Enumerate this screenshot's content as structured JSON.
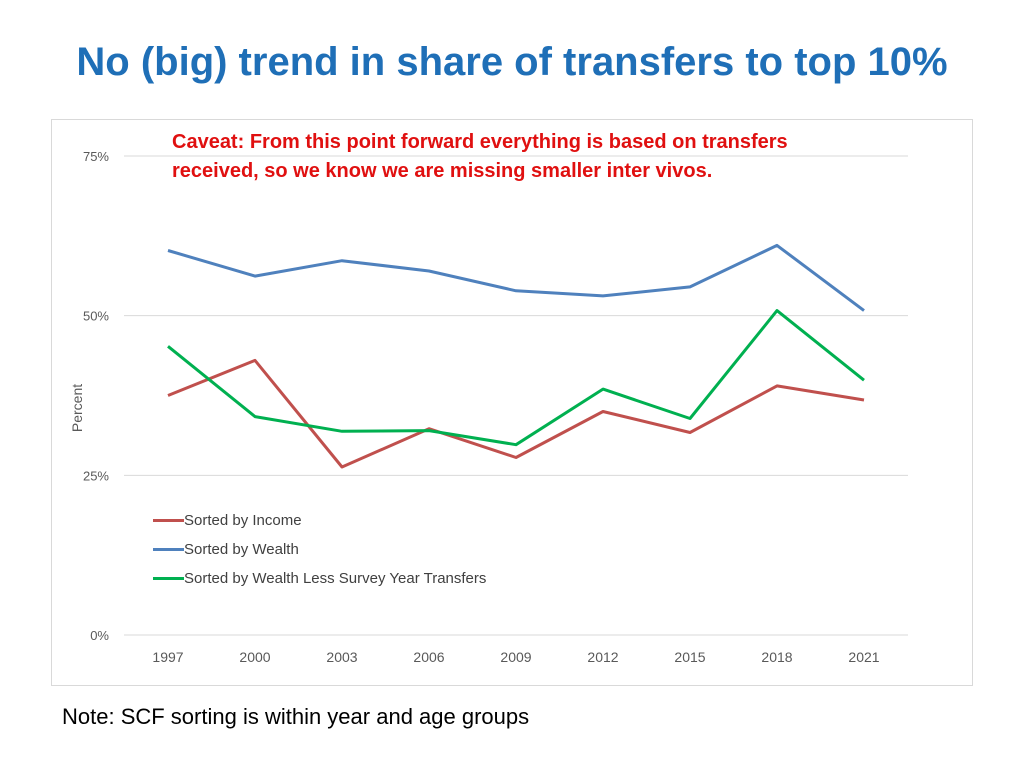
{
  "slide": {
    "title": "No (big) trend in share of transfers to top 10%",
    "caveat_line1": "Caveat: From this point forward everything is based on transfers",
    "caveat_line2": "received, so we know we are missing smaller inter vivos.",
    "note": "Note: SCF sorting is within year and age groups"
  },
  "chart_data": {
    "type": "line",
    "title": "",
    "xlabel": "",
    "ylabel": "Percent",
    "categories": [
      "1997",
      "2000",
      "2003",
      "2006",
      "2009",
      "2012",
      "2015",
      "2018",
      "2021"
    ],
    "y_ticks": [
      0,
      25,
      50,
      75
    ],
    "y_tick_labels": [
      "0%",
      "25%",
      "50%",
      "75%"
    ],
    "ylim": [
      0,
      75
    ],
    "grid": true,
    "legend_position": "lower-left",
    "series": [
      {
        "name": "Sorted by Income",
        "color": "#c0504d",
        "values": [
          37.5,
          43,
          26.3,
          32.3,
          27.8,
          35,
          31.7,
          39,
          36.8
        ]
      },
      {
        "name": "Sorted by Wealth",
        "color": "#4f81bd",
        "values": [
          60.2,
          56.2,
          58.6,
          57,
          53.9,
          53.1,
          54.5,
          61,
          50.8
        ]
      },
      {
        "name": "Sorted by Wealth Less Survey Year Transfers",
        "color": "#00b050",
        "values": [
          45.2,
          34.2,
          31.9,
          32,
          29.8,
          38.5,
          33.9,
          50.8,
          39.9
        ]
      }
    ]
  }
}
